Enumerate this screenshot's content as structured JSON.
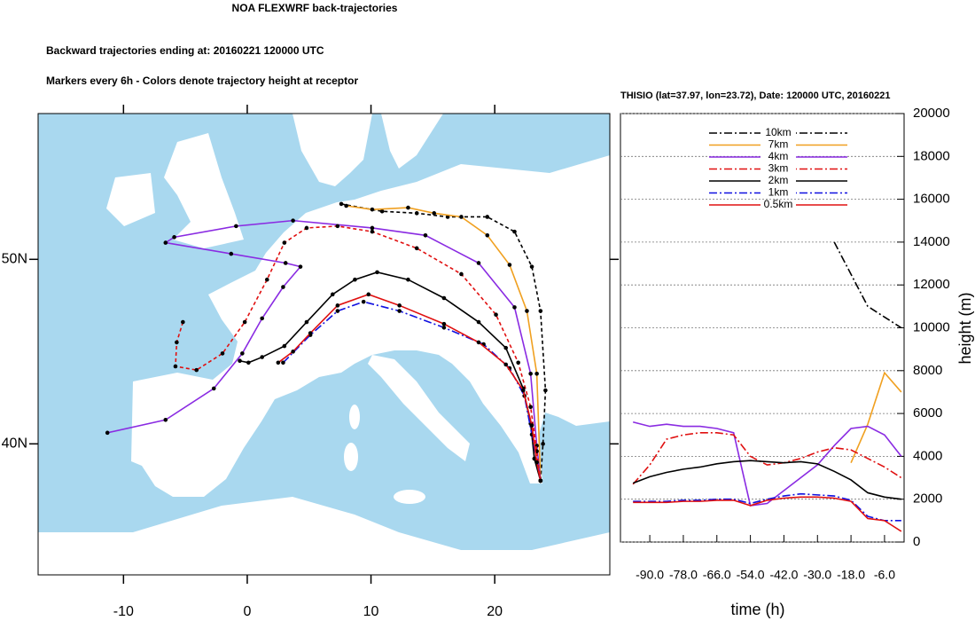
{
  "chart_data": [
    {
      "type": "map",
      "title": "NOA FLEXWRF back-trajectories",
      "subtitles": [
        "Backward trajectories ending at: 20160221  120000 UTC",
        "Markers every 6h - Colors denote trajectory height at receptor"
      ],
      "xlim": [
        -16.9,
        29.3
      ],
      "ylim": [
        32.9,
        57.9
      ],
      "xticks": [
        -10,
        0,
        10,
        20
      ],
      "yticks": [
        {
          "value": 40,
          "label": "40N"
        },
        {
          "value": 50,
          "label": "50N"
        }
      ],
      "markers": true,
      "series": [
        {
          "color": "#000000",
          "dash": "dash",
          "x": [
            7.6,
            10.9,
            13.7,
            16.2,
            19.4,
            21.6,
            23.0,
            23.7,
            24.1,
            23.9,
            23.7
          ],
          "values": [
            53.0,
            52.6,
            52.5,
            52.3,
            52.3,
            51.5,
            49.6,
            47.2,
            42.9,
            40.0,
            38.0
          ]
        },
        {
          "color": "#f0a020",
          "dash": "solid",
          "x": [
            8.0,
            10.1,
            13.0,
            15.1,
            17.3,
            19.4,
            21.2,
            22.6,
            23.4,
            23.7
          ],
          "values": [
            52.9,
            52.7,
            52.8,
            52.5,
            52.3,
            51.3,
            49.7,
            47.2,
            43.8,
            38.0
          ]
        },
        {
          "color": "#8a2be2",
          "dash": "solid",
          "x": [
            -11.3,
            -6.6,
            -2.7,
            -0.4,
            1.2,
            2.9,
            4.3,
            3.1,
            -1.3,
            -6.6,
            -5.9,
            -0.9,
            3.7,
            10.1,
            14.4,
            18.7,
            21.6,
            22.9,
            23.4,
            23.7
          ],
          "values": [
            40.6,
            41.3,
            43.0,
            44.9,
            46.8,
            48.5,
            49.6,
            49.8,
            50.3,
            50.9,
            51.2,
            51.8,
            52.1,
            51.7,
            51.3,
            49.8,
            47.4,
            43.8,
            39.9,
            38.0
          ]
        },
        {
          "color": "#e01010",
          "dash": "dash",
          "x": [
            -5.2,
            -5.7,
            -5.8,
            -4.1,
            -2.0,
            -0.2,
            1.6,
            3.0,
            4.8,
            7.3,
            10.1,
            13.7,
            17.3,
            20.1,
            21.9,
            22.9,
            23.4,
            23.7
          ],
          "values": [
            46.6,
            45.5,
            44.2,
            44.0,
            44.9,
            46.6,
            48.9,
            50.9,
            51.7,
            51.8,
            51.5,
            50.6,
            49.2,
            47.0,
            44.4,
            42.0,
            39.6,
            38.0
          ]
        },
        {
          "color": "#000000",
          "dash": "solid",
          "x": [
            -0.6,
            0.1,
            1.2,
            3.0,
            4.8,
            6.9,
            8.7,
            10.5,
            13.0,
            15.9,
            18.7,
            20.9,
            22.3,
            22.9,
            23.2,
            23.7
          ],
          "values": [
            44.5,
            44.4,
            44.7,
            45.3,
            46.6,
            48.1,
            48.9,
            49.3,
            48.9,
            47.9,
            46.6,
            45.2,
            43.0,
            41.1,
            39.2,
            38.0
          ]
        },
        {
          "color": "#1010e0",
          "dash": "dashdot",
          "x": [
            2.9,
            5.1,
            7.3,
            9.4,
            12.3,
            15.9,
            19.1,
            21.2,
            22.4,
            23.0,
            23.7
          ],
          "values": [
            44.4,
            45.9,
            47.2,
            47.7,
            47.2,
            46.3,
            45.4,
            44.1,
            42.6,
            40.5,
            38.0
          ]
        },
        {
          "color": "#e01010",
          "dash": "solid",
          "x": [
            2.5,
            3.7,
            5.1,
            7.3,
            9.8,
            12.3,
            15.9,
            18.7,
            20.9,
            22.3,
            23.0,
            23.4,
            23.7
          ],
          "values": [
            44.4,
            45.0,
            46.0,
            47.5,
            48.1,
            47.5,
            46.5,
            45.5,
            44.3,
            42.9,
            41.0,
            39.0,
            38.0
          ]
        }
      ]
    },
    {
      "type": "line",
      "title": "THISIO (lat=37.97,  lon=23.72), Date: 120000 UTC, 20160221",
      "x_label": "time (h)",
      "y_label": "height (m)",
      "xlim": [
        -100.5,
        1
      ],
      "ylim": [
        0,
        20000
      ],
      "xticks": [
        {
          "value": -90,
          "label": "-90.0"
        },
        {
          "value": -78,
          "label": "-78.0"
        },
        {
          "value": -66,
          "label": "-66.0"
        },
        {
          "value": -54,
          "label": "-54.0"
        },
        {
          "value": -42,
          "label": "-42.0"
        },
        {
          "value": -30,
          "label": "-30.0"
        },
        {
          "value": -18,
          "label": "-18.0"
        },
        {
          "value": -6,
          "label": "-6.0"
        }
      ],
      "yticks": [
        0,
        2000,
        4000,
        6000,
        8000,
        10000,
        12000,
        14000,
        16000,
        18000,
        20000
      ],
      "grid": true,
      "legend": "upper center",
      "x": [
        -96,
        -90,
        -84,
        -78,
        -72,
        -66,
        -60,
        -54,
        -48,
        -42,
        -36,
        -30,
        -24,
        -18,
        -12,
        -6,
        0
      ],
      "series": [
        {
          "name": "10km",
          "color": "#000000",
          "dash": "dashdot",
          "values": [
            null,
            null,
            null,
            null,
            null,
            null,
            null,
            null,
            null,
            null,
            null,
            null,
            14000,
            12500,
            11000,
            10500,
            10000
          ]
        },
        {
          "name": "7km",
          "color": "#f0a020",
          "dash": "solid",
          "values": [
            null,
            null,
            null,
            null,
            null,
            null,
            null,
            null,
            null,
            null,
            null,
            null,
            null,
            3700,
            5500,
            7900,
            7000
          ]
        },
        {
          "name": "4km",
          "color": "#8a2be2",
          "dash": "solid",
          "values": [
            5600,
            5400,
            5500,
            5400,
            5400,
            5300,
            5100,
            1700,
            1800,
            2400,
            3000,
            3600,
            4500,
            5300,
            5400,
            5000,
            4000
          ]
        },
        {
          "name": "3km",
          "color": "#e01010",
          "dash": "dashdot",
          "values": [
            2700,
            3600,
            4800,
            5000,
            5100,
            5100,
            5000,
            4000,
            3600,
            3700,
            3900,
            4200,
            4400,
            4300,
            3900,
            3500,
            3000
          ]
        },
        {
          "name": "2km",
          "color": "#000000",
          "dash": "solid",
          "values": [
            2750,
            3050,
            3250,
            3400,
            3500,
            3650,
            3750,
            3800,
            3750,
            3700,
            3750,
            3650,
            3300,
            2900,
            2300,
            2100,
            2000
          ]
        },
        {
          "name": "1km",
          "color": "#1010e0",
          "dash": "dashdot",
          "values": [
            1900,
            1900,
            1900,
            1950,
            1950,
            2000,
            2000,
            1800,
            2000,
            2150,
            2250,
            2200,
            2150,
            1950,
            1200,
            1000,
            1000
          ]
        },
        {
          "name": "0.5km",
          "color": "#e01010",
          "dash": "solid",
          "values": [
            1850,
            1850,
            1850,
            1900,
            1900,
            1950,
            1950,
            1700,
            1950,
            2050,
            2100,
            2100,
            2050,
            1900,
            1100,
            1000,
            500
          ]
        }
      ]
    }
  ]
}
